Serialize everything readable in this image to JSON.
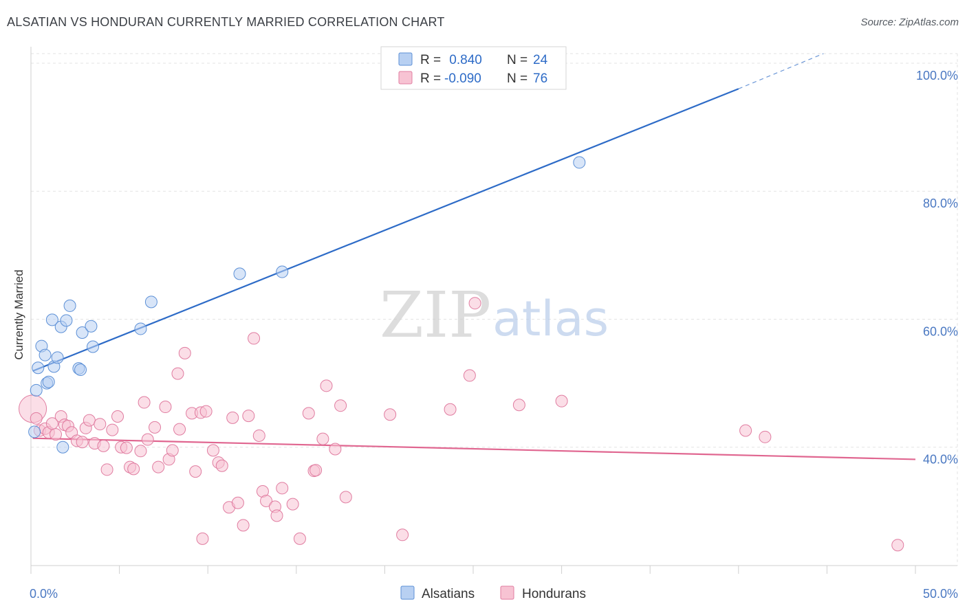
{
  "title": "ALSATIAN VS HONDURAN CURRENTLY MARRIED CORRELATION CHART",
  "source": "Source: ZipAtlas.com",
  "colors": {
    "alsatians_fill": "#b8d0f2",
    "alsatians_stroke": "#5b8fd6",
    "alsatians_line": "#2d6bc7",
    "hondurans_fill": "#f7c3d3",
    "hondurans_stroke": "#e07ca0",
    "hondurans_line": "#e06690",
    "axis_label": "#4a78c2",
    "grid": "#e3e3e3"
  },
  "legend": {
    "rows": [
      {
        "r_label": "R =",
        "r_value": " 0.840",
        "n_label": "N =",
        "n_value": "24"
      },
      {
        "r_label": "R =",
        "r_value": "-0.090",
        "n_label": "N =",
        "n_value": "76"
      }
    ]
  },
  "watermark": {
    "zip": "ZIP",
    "atlas": "atlas"
  },
  "chart_data": {
    "type": "scatter",
    "title": "ALSATIAN VS HONDURAN CURRENTLY MARRIED CORRELATION CHART",
    "xlabel": "",
    "ylabel": "Currently Married",
    "xlim": [
      0,
      50
    ],
    "ylim": [
      21.5,
      101.5
    ],
    "x_tick_labels": [
      "0.0%",
      "50.0%"
    ],
    "y_ticks": [
      40,
      60,
      80,
      100
    ],
    "y_tick_labels": [
      "40.0%",
      "60.0%",
      "80.0%",
      "100.0%"
    ],
    "grid": true,
    "legend_position": "top-center",
    "series": [
      {
        "name": "Alsatians",
        "r": 0.84,
        "n": 24,
        "trend": {
          "x": [
            0.1,
            40.0
          ],
          "y": [
            51.9,
            96.0
          ],
          "dashed_to": [
            44.8,
            101.5
          ]
        },
        "points": [
          {
            "x": 0.2,
            "y": 42.4
          },
          {
            "x": 0.3,
            "y": 48.9
          },
          {
            "x": 0.4,
            "y": 52.4
          },
          {
            "x": 0.6,
            "y": 55.8
          },
          {
            "x": 0.8,
            "y": 54.4
          },
          {
            "x": 0.9,
            "y": 50.0
          },
          {
            "x": 1.0,
            "y": 50.2
          },
          {
            "x": 1.2,
            "y": 59.9
          },
          {
            "x": 1.3,
            "y": 52.6
          },
          {
            "x": 1.5,
            "y": 54.0
          },
          {
            "x": 1.7,
            "y": 58.8
          },
          {
            "x": 1.8,
            "y": 40.0
          },
          {
            "x": 2.0,
            "y": 59.8
          },
          {
            "x": 2.2,
            "y": 62.1
          },
          {
            "x": 2.7,
            "y": 52.3
          },
          {
            "x": 2.8,
            "y": 52.1
          },
          {
            "x": 2.9,
            "y": 57.9
          },
          {
            "x": 3.4,
            "y": 58.9
          },
          {
            "x": 3.5,
            "y": 55.7
          },
          {
            "x": 6.2,
            "y": 58.5
          },
          {
            "x": 6.8,
            "y": 62.7
          },
          {
            "x": 11.8,
            "y": 67.1
          },
          {
            "x": 14.2,
            "y": 67.4
          },
          {
            "x": 31.0,
            "y": 84.5
          }
        ]
      },
      {
        "name": "Hondurans",
        "r": -0.09,
        "n": 76,
        "trend": {
          "x": [
            0.1,
            50.0
          ],
          "y": [
            41.4,
            38.1
          ]
        },
        "points": [
          {
            "x": 0.1,
            "y": 46.0,
            "big": true
          },
          {
            "x": 0.3,
            "y": 44.5
          },
          {
            "x": 0.5,
            "y": 42.6
          },
          {
            "x": 0.8,
            "y": 42.9
          },
          {
            "x": 1.0,
            "y": 42.3
          },
          {
            "x": 1.2,
            "y": 43.7
          },
          {
            "x": 1.4,
            "y": 42.0
          },
          {
            "x": 1.7,
            "y": 44.8
          },
          {
            "x": 1.9,
            "y": 43.5
          },
          {
            "x": 2.1,
            "y": 43.3
          },
          {
            "x": 2.3,
            "y": 42.3
          },
          {
            "x": 2.6,
            "y": 41.0
          },
          {
            "x": 2.9,
            "y": 40.8
          },
          {
            "x": 3.1,
            "y": 43.0
          },
          {
            "x": 3.3,
            "y": 44.2
          },
          {
            "x": 3.6,
            "y": 40.6
          },
          {
            "x": 3.9,
            "y": 43.6
          },
          {
            "x": 4.1,
            "y": 40.2
          },
          {
            "x": 4.3,
            "y": 36.5
          },
          {
            "x": 4.6,
            "y": 42.7
          },
          {
            "x": 4.9,
            "y": 44.8
          },
          {
            "x": 5.1,
            "y": 40.0
          },
          {
            "x": 5.4,
            "y": 39.9
          },
          {
            "x": 5.6,
            "y": 36.9
          },
          {
            "x": 5.8,
            "y": 36.6
          },
          {
            "x": 6.2,
            "y": 39.4
          },
          {
            "x": 6.4,
            "y": 47.0
          },
          {
            "x": 6.6,
            "y": 41.2
          },
          {
            "x": 7.0,
            "y": 43.1
          },
          {
            "x": 7.2,
            "y": 36.9
          },
          {
            "x": 7.6,
            "y": 46.3
          },
          {
            "x": 7.8,
            "y": 38.1
          },
          {
            "x": 8.0,
            "y": 39.5
          },
          {
            "x": 8.3,
            "y": 51.5
          },
          {
            "x": 8.4,
            "y": 42.8
          },
          {
            "x": 8.7,
            "y": 54.7
          },
          {
            "x": 9.1,
            "y": 45.3
          },
          {
            "x": 9.3,
            "y": 36.2
          },
          {
            "x": 9.6,
            "y": 45.4
          },
          {
            "x": 9.7,
            "y": 25.7
          },
          {
            "x": 9.9,
            "y": 45.6
          },
          {
            "x": 10.3,
            "y": 39.5
          },
          {
            "x": 10.6,
            "y": 37.6
          },
          {
            "x": 10.8,
            "y": 37.1
          },
          {
            "x": 11.2,
            "y": 30.6
          },
          {
            "x": 11.4,
            "y": 44.6
          },
          {
            "x": 11.7,
            "y": 31.3
          },
          {
            "x": 12.0,
            "y": 27.8
          },
          {
            "x": 12.3,
            "y": 44.9
          },
          {
            "x": 12.6,
            "y": 57.0
          },
          {
            "x": 12.9,
            "y": 41.8
          },
          {
            "x": 13.1,
            "y": 33.1
          },
          {
            "x": 13.3,
            "y": 31.6
          },
          {
            "x": 13.8,
            "y": 30.7
          },
          {
            "x": 13.9,
            "y": 29.3
          },
          {
            "x": 14.2,
            "y": 33.6
          },
          {
            "x": 14.8,
            "y": 31.1
          },
          {
            "x": 15.2,
            "y": 25.7
          },
          {
            "x": 15.7,
            "y": 45.3
          },
          {
            "x": 16.0,
            "y": 36.3
          },
          {
            "x": 16.1,
            "y": 36.4
          },
          {
            "x": 16.5,
            "y": 41.3
          },
          {
            "x": 16.7,
            "y": 49.6
          },
          {
            "x": 17.2,
            "y": 39.7
          },
          {
            "x": 17.5,
            "y": 46.5
          },
          {
            "x": 17.8,
            "y": 32.2
          },
          {
            "x": 20.3,
            "y": 45.1
          },
          {
            "x": 21.0,
            "y": 26.3
          },
          {
            "x": 23.7,
            "y": 45.9
          },
          {
            "x": 24.8,
            "y": 51.2
          },
          {
            "x": 25.1,
            "y": 62.5
          },
          {
            "x": 27.6,
            "y": 46.6
          },
          {
            "x": 30.0,
            "y": 47.2
          },
          {
            "x": 40.4,
            "y": 42.6
          },
          {
            "x": 41.5,
            "y": 41.6
          },
          {
            "x": 49.0,
            "y": 24.7
          }
        ]
      }
    ]
  }
}
